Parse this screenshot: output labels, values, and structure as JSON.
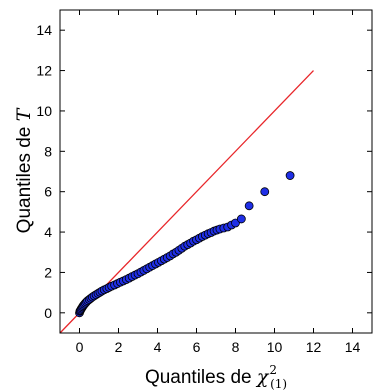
{
  "chart_data": {
    "type": "scatter",
    "title": "",
    "xlabel": {
      "prefix": "Quantiles de ",
      "symbol": "χ",
      "superscript": "2",
      "subscript": "(1)"
    },
    "ylabel": {
      "prefix": "Quantiles de ",
      "symbol": "T"
    },
    "xlim": [
      -1,
      15
    ],
    "ylim": [
      -1,
      15
    ],
    "xticks": [
      0,
      2,
      4,
      6,
      8,
      10,
      12,
      14
    ],
    "yticks": [
      0,
      2,
      4,
      6,
      8,
      10,
      12,
      14
    ],
    "grid": false,
    "reference_line": {
      "x": [
        -1,
        12
      ],
      "y": [
        -1,
        12
      ],
      "color": "#e8262a"
    },
    "marker_color": "#1f2fe6",
    "series": [
      {
        "points": [
          [
            0.0,
            0.0
          ],
          [
            0.02,
            0.08
          ],
          [
            0.05,
            0.12
          ],
          [
            0.08,
            0.18
          ],
          [
            0.12,
            0.24
          ],
          [
            0.16,
            0.3
          ],
          [
            0.2,
            0.36
          ],
          [
            0.25,
            0.42
          ],
          [
            0.3,
            0.48
          ],
          [
            0.36,
            0.54
          ],
          [
            0.42,
            0.6
          ],
          [
            0.5,
            0.66
          ],
          [
            0.58,
            0.72
          ],
          [
            0.66,
            0.78
          ],
          [
            0.75,
            0.84
          ],
          [
            0.85,
            0.9
          ],
          [
            0.95,
            0.96
          ],
          [
            1.05,
            1.02
          ],
          [
            1.15,
            1.08
          ],
          [
            1.27,
            1.14
          ],
          [
            1.4,
            1.2
          ],
          [
            1.52,
            1.26
          ],
          [
            1.65,
            1.32
          ],
          [
            1.8,
            1.38
          ],
          [
            1.95,
            1.45
          ],
          [
            2.1,
            1.52
          ],
          [
            2.25,
            1.58
          ],
          [
            2.4,
            1.65
          ],
          [
            2.55,
            1.72
          ],
          [
            2.7,
            1.8
          ],
          [
            2.85,
            1.87
          ],
          [
            3.0,
            1.94
          ],
          [
            3.15,
            2.02
          ],
          [
            3.3,
            2.1
          ],
          [
            3.45,
            2.18
          ],
          [
            3.6,
            2.26
          ],
          [
            3.75,
            2.34
          ],
          [
            3.9,
            2.42
          ],
          [
            4.05,
            2.5
          ],
          [
            4.2,
            2.58
          ],
          [
            4.35,
            2.66
          ],
          [
            4.5,
            2.74
          ],
          [
            4.65,
            2.82
          ],
          [
            4.8,
            2.92
          ],
          [
            4.95,
            3.0
          ],
          [
            5.1,
            3.1
          ],
          [
            5.25,
            3.2
          ],
          [
            5.4,
            3.3
          ],
          [
            5.55,
            3.38
          ],
          [
            5.7,
            3.46
          ],
          [
            5.85,
            3.55
          ],
          [
            6.0,
            3.62
          ],
          [
            6.15,
            3.7
          ],
          [
            6.3,
            3.78
          ],
          [
            6.45,
            3.85
          ],
          [
            6.6,
            3.92
          ],
          [
            6.75,
            3.98
          ],
          [
            6.9,
            4.05
          ],
          [
            7.05,
            4.1
          ],
          [
            7.2,
            4.15
          ],
          [
            7.4,
            4.2
          ],
          [
            7.6,
            4.25
          ],
          [
            7.8,
            4.35
          ],
          [
            8.0,
            4.45
          ],
          [
            8.3,
            4.65
          ],
          [
            8.7,
            5.3
          ],
          [
            9.5,
            6.0
          ],
          [
            10.8,
            6.8
          ]
        ]
      }
    ]
  }
}
